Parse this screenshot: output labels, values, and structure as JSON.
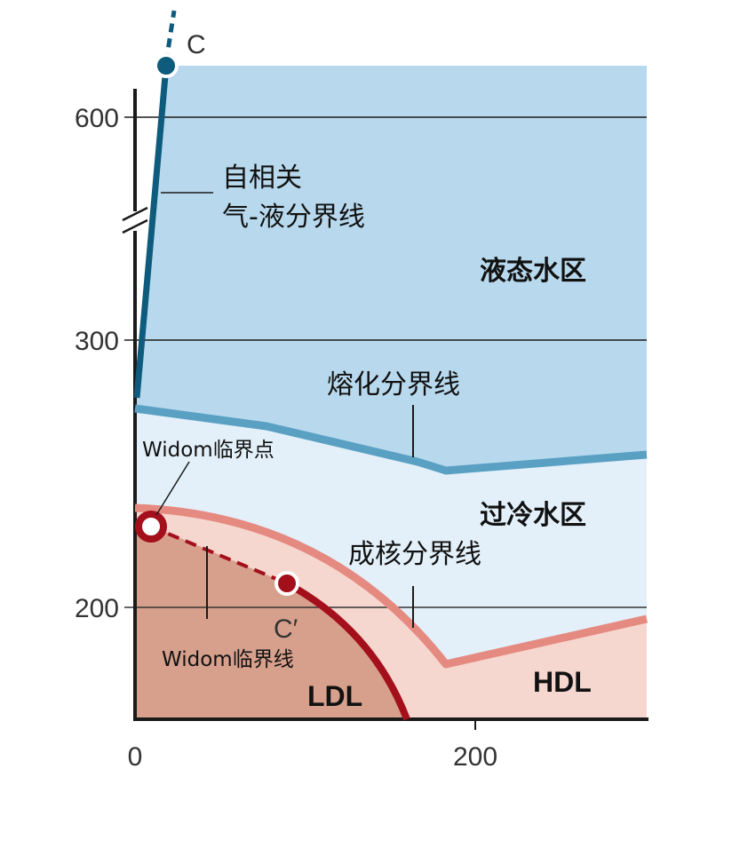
{
  "axes": {
    "y_ticks": [
      "600",
      "300",
      "200"
    ],
    "x_ticks": [
      "0",
      "200"
    ]
  },
  "points": {
    "critical": "C",
    "second_critical": "C′"
  },
  "labels": {
    "gas_liquid_line": [
      "自相关",
      "气-液分界线"
    ],
    "melting_line": "熔化分界线",
    "nucleation_line": "成核分界线",
    "widom_point": "Widom临界点",
    "widom_line": "Widom临界线"
  },
  "regions": {
    "liquid": "液态水区",
    "supercooled": "过冷水区",
    "ldl": "LDL",
    "hdl": "HDL"
  },
  "colors": {
    "liquid_fill": "#b8d9ed",
    "supercooled_fill": "#e3f0f9",
    "ldl_fill": "#d7a08d",
    "hdl_fill": "#f5d7cf",
    "melting_line": "#5aa0c3",
    "gas_liquid_line": "#0f5b7d",
    "nucleation_line": "#e58a80",
    "widom_line": "#a3101c"
  }
}
